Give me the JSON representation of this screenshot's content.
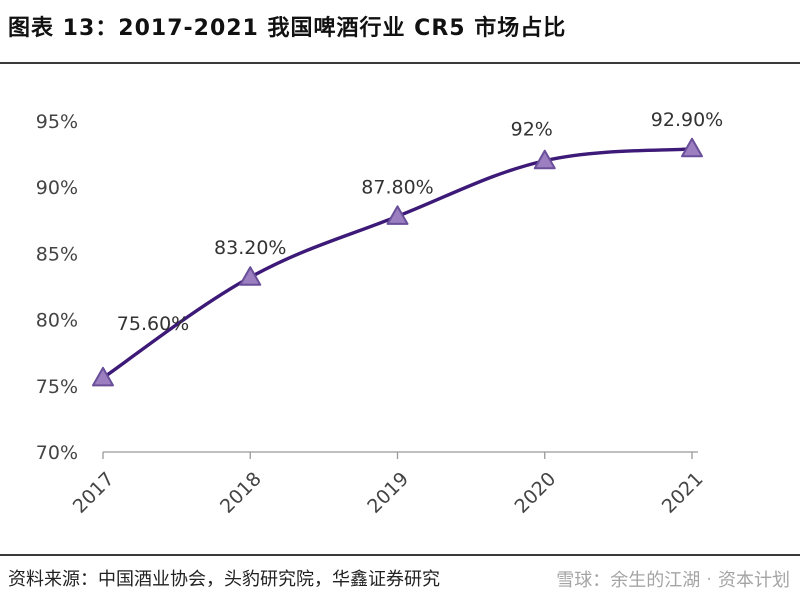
{
  "title": "图表 13：2017-2021 我国啤酒行业 CR5 市场占比",
  "source": "资料来源：中国酒业协会，头豹研究院，华鑫证券研究",
  "watermark": {
    "left": "雪球：余生的江湖",
    "right": "资本计划"
  },
  "colors": {
    "line": "#3d1a78",
    "marker_fill": "#9b7fc0",
    "marker_stroke": "#6a4f9a",
    "axis": "#999999"
  },
  "chart_data": {
    "type": "line",
    "categories": [
      "2017",
      "2018",
      "2019",
      "2020",
      "2021"
    ],
    "values": [
      75.6,
      83.2,
      87.8,
      92,
      92.9
    ],
    "data_labels": [
      "75.60%",
      "83.20%",
      "87.80%",
      "92%",
      "92.90%"
    ],
    "ylim": [
      70,
      95
    ],
    "yticks": [
      70,
      75,
      80,
      85,
      90,
      95
    ],
    "ytick_labels": [
      "70%",
      "75%",
      "80%",
      "85%",
      "90%",
      "95%"
    ],
    "marker": "triangle",
    "grid": false,
    "legend": "none",
    "xlabel": "",
    "ylabel": ""
  }
}
